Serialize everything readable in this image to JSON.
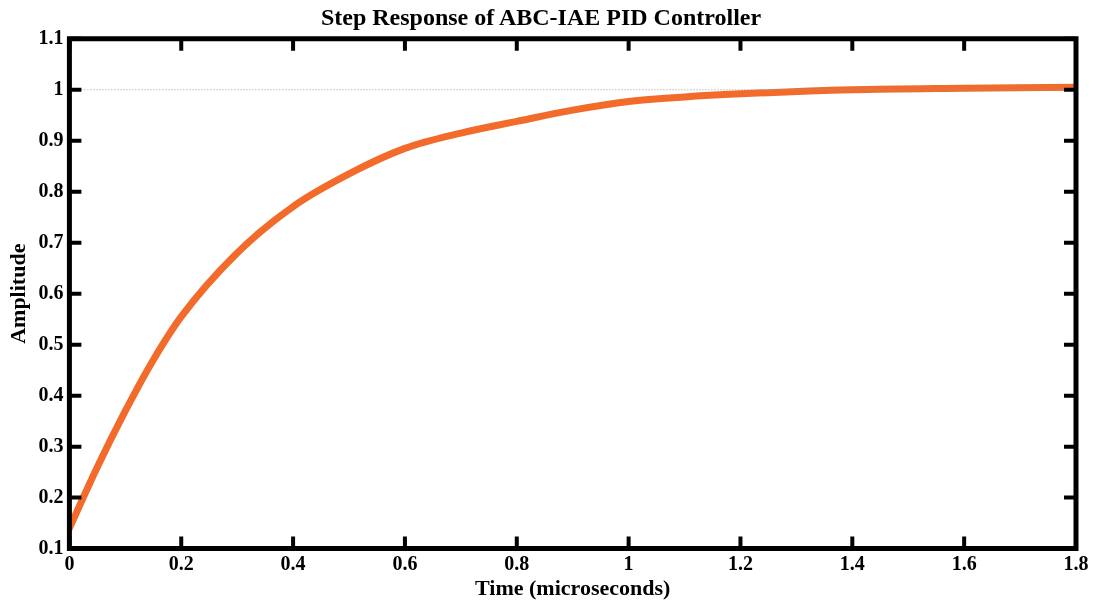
{
  "chart_data": {
    "type": "line",
    "title": "Step Response of ABC-IAE PID Controller",
    "xlabel": "Time (microseconds)",
    "ylabel": "Amplitude",
    "x": [
      0,
      0.05,
      0.1,
      0.15,
      0.2,
      0.3,
      0.4,
      0.5,
      0.6,
      0.7,
      0.8,
      0.9,
      1.0,
      1.1,
      1.2,
      1.4,
      1.6,
      1.8
    ],
    "series": [
      {
        "color": "#f26b2a",
        "values": [
          0.14,
          0.26,
          0.37,
          0.47,
          0.555,
          0.68,
          0.771,
          0.835,
          0.885,
          0.915,
          0.938,
          0.96,
          0.977,
          0.986,
          0.992,
          1.0,
          1.003,
          1.005
        ]
      }
    ],
    "xlim": [
      0,
      1.8
    ],
    "xticks": [
      0,
      0.2,
      0.4,
      0.6,
      0.8,
      1,
      1.2,
      1.4,
      1.6,
      1.8
    ],
    "ylim": [
      0.1,
      1.1
    ],
    "yticks": [
      0.1,
      0.2,
      0.3,
      0.4,
      0.5,
      0.6,
      0.7,
      0.8,
      0.9,
      1,
      1.1
    ],
    "ref_lines": [
      {
        "axis": "y",
        "value": 1,
        "color": "#999999",
        "line_style": "dotted"
      }
    ],
    "grid": false,
    "legend": false,
    "marker": "none",
    "line_style": "solid"
  }
}
